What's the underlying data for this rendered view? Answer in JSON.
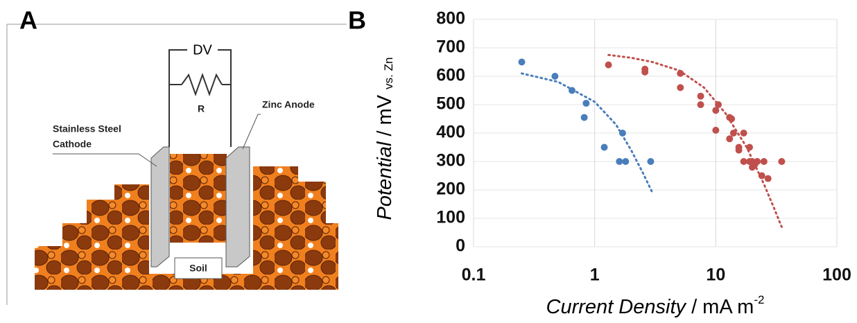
{
  "panel_labels": [
    "A",
    "B"
  ],
  "diagram": {
    "dv": "DV",
    "r": "R",
    "zinc_anode": "Zinc Anode",
    "cathode": [
      "Stainless Steel",
      "Cathode"
    ],
    "soil": "Soil"
  },
  "chart_data": {
    "type": "scatter",
    "x_label": [
      "Current Density",
      " / mA m",
      "-2"
    ],
    "y_label": [
      "Potential",
      " / mV ",
      "vs. Zn"
    ],
    "x_scale": "log",
    "xlim": [
      0.1,
      100
    ],
    "xticks": [
      0.1,
      1,
      10,
      100
    ],
    "ylim": [
      0,
      800
    ],
    "yticks": [
      0,
      100,
      200,
      300,
      400,
      500,
      600,
      700,
      800
    ],
    "grid": true,
    "series": [
      {
        "color": "#4a7ebb",
        "x": [
          0.25,
          0.47,
          0.65,
          0.85,
          0.82,
          1.2,
          1.7,
          1.6,
          1.8,
          2.9
        ],
        "values": [
          650,
          600,
          550,
          505,
          455,
          350,
          400,
          300,
          300,
          300
        ],
        "trend": {
          "x": [
            0.25,
            0.5,
            1,
            1.5,
            2,
            2.5,
            3
          ],
          "values": [
            610,
            580,
            510,
            430,
            340,
            260,
            190
          ]
        }
      },
      {
        "color": "#c0504d",
        "x": [
          1.3,
          2.6,
          2.6,
          5.1,
          5.1,
          7.5,
          7.5,
          10.5,
          10,
          10,
          13,
          13.5,
          14,
          13,
          15.5,
          15.5,
          17,
          17,
          19,
          19,
          20,
          20,
          22,
          21,
          24,
          25,
          27,
          35
        ],
        "values": [
          640,
          625,
          615,
          610,
          560,
          530,
          500,
          500,
          480,
          410,
          455,
          450,
          400,
          380,
          350,
          340,
          400,
          300,
          350,
          300,
          300,
          280,
          300,
          290,
          250,
          300,
          240,
          300
        ],
        "trend": {
          "x": [
            1.3,
            2,
            3,
            5,
            8,
            12,
            18,
            25,
            30,
            35
          ],
          "values": [
            675,
            665,
            650,
            620,
            560,
            470,
            350,
            220,
            140,
            70
          ]
        }
      }
    ]
  }
}
